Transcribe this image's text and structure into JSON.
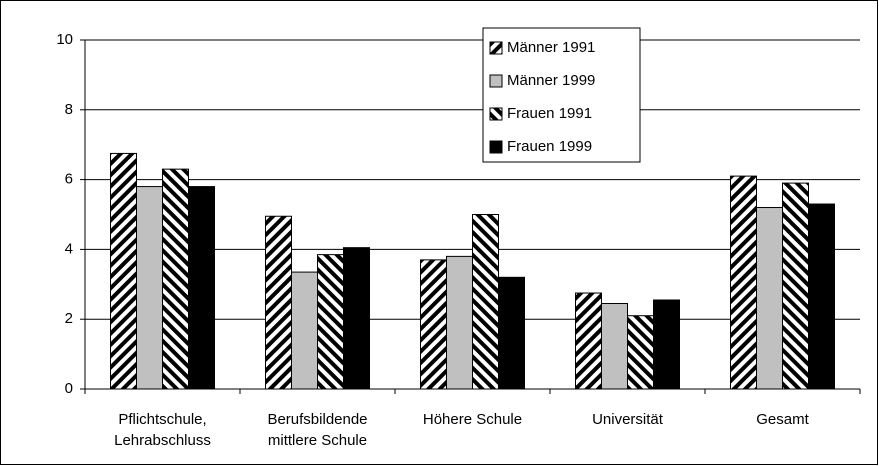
{
  "chart_data": {
    "type": "bar",
    "categories": [
      "Pflichtschule,\nLehrabschluss",
      "Berufsbildende\nmittlere Schule",
      "Höhere Schule",
      "Universität",
      "Gesamt"
    ],
    "series": [
      {
        "name": "Männer 1991",
        "color": "#000000",
        "hatch": "forward",
        "values": [
          6.75,
          4.95,
          3.7,
          2.75,
          6.1
        ]
      },
      {
        "name": "Männer 1999",
        "color": "#c0c0c0",
        "values": [
          5.8,
          3.35,
          3.8,
          2.45,
          5.2
        ]
      },
      {
        "name": "Frauen 1991",
        "color": "#000000",
        "hatch": "backward",
        "values": [
          6.3,
          3.85,
          5.0,
          2.1,
          5.9
        ]
      },
      {
        "name": "Frauen 1999",
        "color": "#000000",
        "values": [
          5.8,
          4.05,
          3.2,
          2.55,
          5.3
        ]
      }
    ],
    "ylim": [
      0,
      10
    ],
    "yticks": [
      0,
      2,
      4,
      6,
      8,
      10
    ],
    "grid": true,
    "legend": "top-right"
  }
}
